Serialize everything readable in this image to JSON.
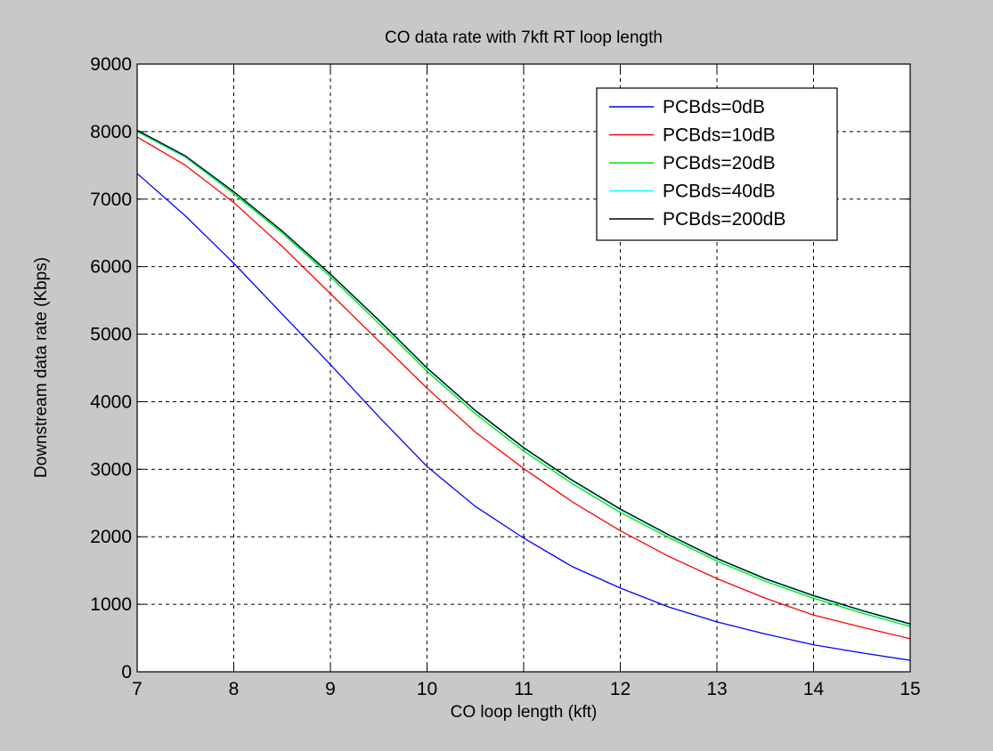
{
  "chart_data": {
    "type": "line",
    "title": "CO data rate with 7kft RT loop length",
    "xlabel": "CO loop length (kft)",
    "ylabel": "Downstream data rate (Kbps)",
    "xlim": [
      7,
      15
    ],
    "ylim": [
      0,
      9000
    ],
    "xticks": [
      7,
      8,
      9,
      10,
      11,
      12,
      13,
      14,
      15
    ],
    "yticks": [
      0,
      1000,
      2000,
      3000,
      4000,
      5000,
      6000,
      7000,
      8000,
      9000
    ],
    "grid": true,
    "legend_position": "top-right",
    "x": [
      7,
      7.5,
      8,
      8.5,
      9,
      9.5,
      10,
      10.5,
      11,
      11.5,
      12,
      12.5,
      13,
      13.5,
      14,
      14.5,
      15
    ],
    "series": [
      {
        "name": "PCBds=0dB",
        "color": "#0000ff",
        "values": [
          7380,
          6750,
          6050,
          5300,
          4550,
          3780,
          3040,
          2450,
          1980,
          1560,
          1240,
          960,
          740,
          560,
          400,
          280,
          170
        ]
      },
      {
        "name": "PCBds=10dB",
        "color": "#ff0000",
        "values": [
          7920,
          7500,
          6950,
          6300,
          5600,
          4900,
          4200,
          3550,
          3010,
          2520,
          2090,
          1710,
          1380,
          1090,
          840,
          660,
          490
        ]
      },
      {
        "name": "PCBds=20dB",
        "color": "#00e000",
        "values": [
          8000,
          7620,
          7080,
          6500,
          5850,
          5160,
          4450,
          3820,
          3270,
          2790,
          2360,
          1990,
          1640,
          1340,
          1090,
          870,
          670
        ]
      },
      {
        "name": "PCBds=40dB",
        "color": "#00ffff",
        "values": [
          8010,
          7630,
          7100,
          6520,
          5880,
          5200,
          4490,
          3860,
          3310,
          2830,
          2400,
          2020,
          1670,
          1370,
          1120,
          900,
          700
        ]
      },
      {
        "name": "PCBds=200dB",
        "color": "#000000",
        "values": [
          8020,
          7640,
          7110,
          6530,
          5890,
          5210,
          4500,
          3870,
          3320,
          2840,
          2410,
          2030,
          1680,
          1380,
          1130,
          910,
          710
        ]
      }
    ]
  }
}
